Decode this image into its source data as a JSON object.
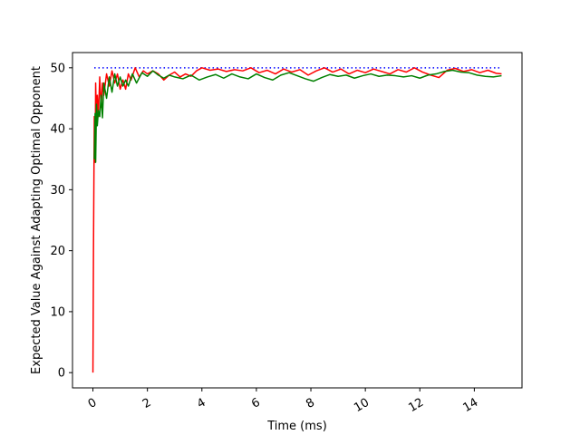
{
  "chart_data": {
    "type": "line",
    "title": "",
    "xlabel": "Time (ms)",
    "ylabel": "Expected Value Against Adapting Optimal Opponent",
    "xlim": [
      -0.75,
      15.75
    ],
    "ylim": [
      -2.5,
      52.5
    ],
    "xticks": [
      0,
      2,
      4,
      6,
      8,
      10,
      12,
      14
    ],
    "yticks": [
      0,
      10,
      20,
      30,
      40,
      50
    ],
    "grid": false,
    "legend": "none",
    "series": [
      {
        "color": "#0000ff",
        "style": "dotted",
        "x": [
          0.05,
          15.0
        ],
        "y": [
          50,
          50
        ]
      },
      {
        "color": "#ff0000",
        "style": "solid",
        "x": [
          0.0,
          0.02,
          0.05,
          0.08,
          0.1,
          0.13,
          0.16,
          0.2,
          0.25,
          0.3,
          0.35,
          0.4,
          0.5,
          0.6,
          0.7,
          0.8,
          0.9,
          1.0,
          1.1,
          1.2,
          1.3,
          1.4,
          1.55,
          1.7,
          1.85,
          2.0,
          2.2,
          2.4,
          2.6,
          2.8,
          3.0,
          3.2,
          3.4,
          3.6,
          3.8,
          4.0,
          4.3,
          4.6,
          4.9,
          5.2,
          5.5,
          5.8,
          6.1,
          6.4,
          6.7,
          7.0,
          7.3,
          7.6,
          7.9,
          8.2,
          8.5,
          8.8,
          9.1,
          9.4,
          9.7,
          10.0,
          10.3,
          10.6,
          10.9,
          11.2,
          11.5,
          11.8,
          12.1,
          12.4,
          12.7,
          13.0,
          13.3,
          13.6,
          13.9,
          14.2,
          14.5,
          14.8,
          15.0
        ],
        "y": [
          0.0,
          20.0,
          42.0,
          34.5,
          47.5,
          41.0,
          45.5,
          42.0,
          48.5,
          43.5,
          47.5,
          45.5,
          49.0,
          47.0,
          49.5,
          47.5,
          49.0,
          46.5,
          48.0,
          46.5,
          49.0,
          48.0,
          50.0,
          48.5,
          49.5,
          49.0,
          49.5,
          49.0,
          48.0,
          48.8,
          49.3,
          48.5,
          49.0,
          48.6,
          49.5,
          50.0,
          49.6,
          49.8,
          49.4,
          49.7,
          49.5,
          50.0,
          49.2,
          49.6,
          49.0,
          49.8,
          49.3,
          49.7,
          48.8,
          49.5,
          50.0,
          49.3,
          49.8,
          49.0,
          49.6,
          49.2,
          49.8,
          49.4,
          49.0,
          49.7,
          49.3,
          50.0,
          49.3,
          48.8,
          48.4,
          49.6,
          49.9,
          49.4,
          49.7,
          49.2,
          49.6,
          49.1,
          49.0
        ]
      },
      {
        "color": "#008000",
        "style": "solid",
        "x": [
          0.05,
          0.08,
          0.1,
          0.13,
          0.16,
          0.2,
          0.25,
          0.3,
          0.35,
          0.4,
          0.5,
          0.6,
          0.7,
          0.8,
          0.9,
          1.0,
          1.1,
          1.2,
          1.3,
          1.45,
          1.6,
          1.8,
          2.0,
          2.2,
          2.4,
          2.6,
          2.8,
          3.0,
          3.3,
          3.6,
          3.9,
          4.2,
          4.5,
          4.8,
          5.1,
          5.4,
          5.7,
          6.0,
          6.3,
          6.6,
          6.9,
          7.2,
          7.5,
          7.8,
          8.1,
          8.4,
          8.7,
          9.0,
          9.3,
          9.6,
          9.9,
          10.2,
          10.5,
          10.8,
          11.1,
          11.4,
          11.7,
          12.0,
          12.3,
          12.6,
          12.9,
          13.2,
          13.5,
          13.8,
          14.1,
          14.4,
          14.7,
          15.0
        ],
        "y": [
          35.0,
          42.5,
          34.5,
          44.0,
          40.5,
          43.0,
          42.0,
          45.5,
          41.8,
          47.5,
          45.0,
          48.5,
          46.0,
          49.0,
          47.0,
          48.5,
          47.0,
          48.0,
          47.0,
          49.0,
          47.5,
          49.2,
          48.6,
          49.5,
          48.8,
          48.3,
          48.8,
          48.5,
          48.2,
          48.8,
          48.0,
          48.5,
          48.9,
          48.3,
          49.0,
          48.5,
          48.2,
          49.0,
          48.4,
          48.0,
          48.8,
          49.2,
          48.7,
          48.2,
          47.8,
          48.4,
          48.9,
          48.6,
          48.8,
          48.3,
          48.7,
          49.0,
          48.6,
          48.8,
          48.7,
          48.5,
          48.7,
          48.3,
          48.8,
          49.0,
          49.4,
          49.6,
          49.3,
          49.2,
          48.8,
          48.6,
          48.5,
          48.7
        ]
      }
    ]
  }
}
